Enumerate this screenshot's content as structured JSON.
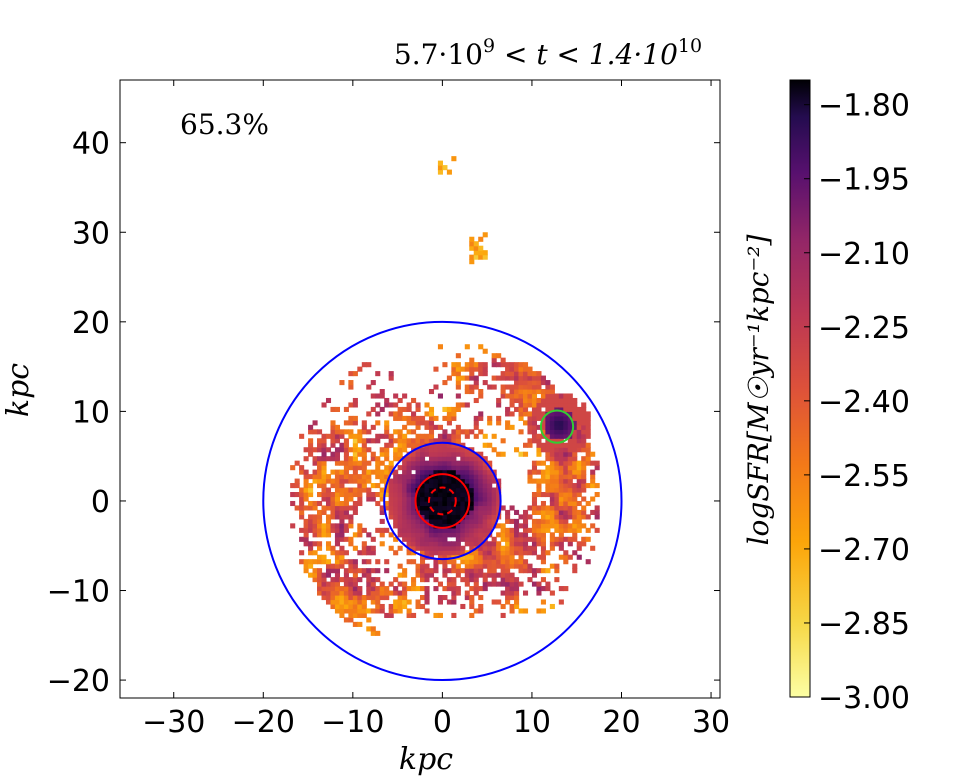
{
  "chart_data": {
    "type": "heatmap",
    "title": "5.7·10^9 < t < 1.4·10^10",
    "title_parts": {
      "a": "5.7·10",
      "a_exp": "9",
      "mid": " < t < 1.4·10",
      "b_exp": "10"
    },
    "annotation": "65.3%",
    "xlabel": "kpc",
    "ylabel": "kpc",
    "xlim": [
      -36,
      31
    ],
    "ylim": [
      -22,
      47
    ],
    "x_ticks": [
      -30,
      -20,
      -10,
      0,
      10,
      20,
      30
    ],
    "y_ticks": [
      -20,
      -10,
      0,
      10,
      20,
      30,
      40
    ],
    "x_tick_labels": [
      "−30",
      "−20",
      "−10",
      "0",
      "10",
      "20",
      "30"
    ],
    "y_tick_labels": [
      "−20",
      "−10",
      "0",
      "10",
      "20",
      "30",
      "40"
    ],
    "colorbar": {
      "label": "logSFR[M☉yr⁻¹kpc⁻²]",
      "vmin": -3.0,
      "vmax": -1.75,
      "ticks": [
        -1.8,
        -1.95,
        -2.1,
        -2.25,
        -2.4,
        -2.55,
        -2.7,
        -2.85,
        -3.0
      ],
      "tick_labels": [
        "−1.80",
        "−1.95",
        "−2.10",
        "−2.25",
        "−2.40",
        "−2.55",
        "−2.70",
        "−2.85",
        "−3.00"
      ],
      "colormap": "inferno_r"
    },
    "circles": [
      {
        "name": "outer-circle",
        "cx": 0,
        "cy": 0,
        "r": 20,
        "color": "#0000ff",
        "style": "solid"
      },
      {
        "name": "inner-circle",
        "cx": 0,
        "cy": 0,
        "r": 6.5,
        "color": "#0000ff",
        "style": "solid"
      },
      {
        "name": "core-circle",
        "cx": 0,
        "cy": 0,
        "r": 3.0,
        "color": "#ff0000",
        "style": "solid"
      },
      {
        "name": "core-dashed-circle",
        "cx": 0,
        "cy": 0,
        "r": 1.5,
        "color": "#ff0000",
        "style": "dashed"
      },
      {
        "name": "clump-circle",
        "cx": 12.8,
        "cy": 8.3,
        "r": 1.8,
        "color": "#33cc33",
        "style": "solid"
      }
    ]
  }
}
